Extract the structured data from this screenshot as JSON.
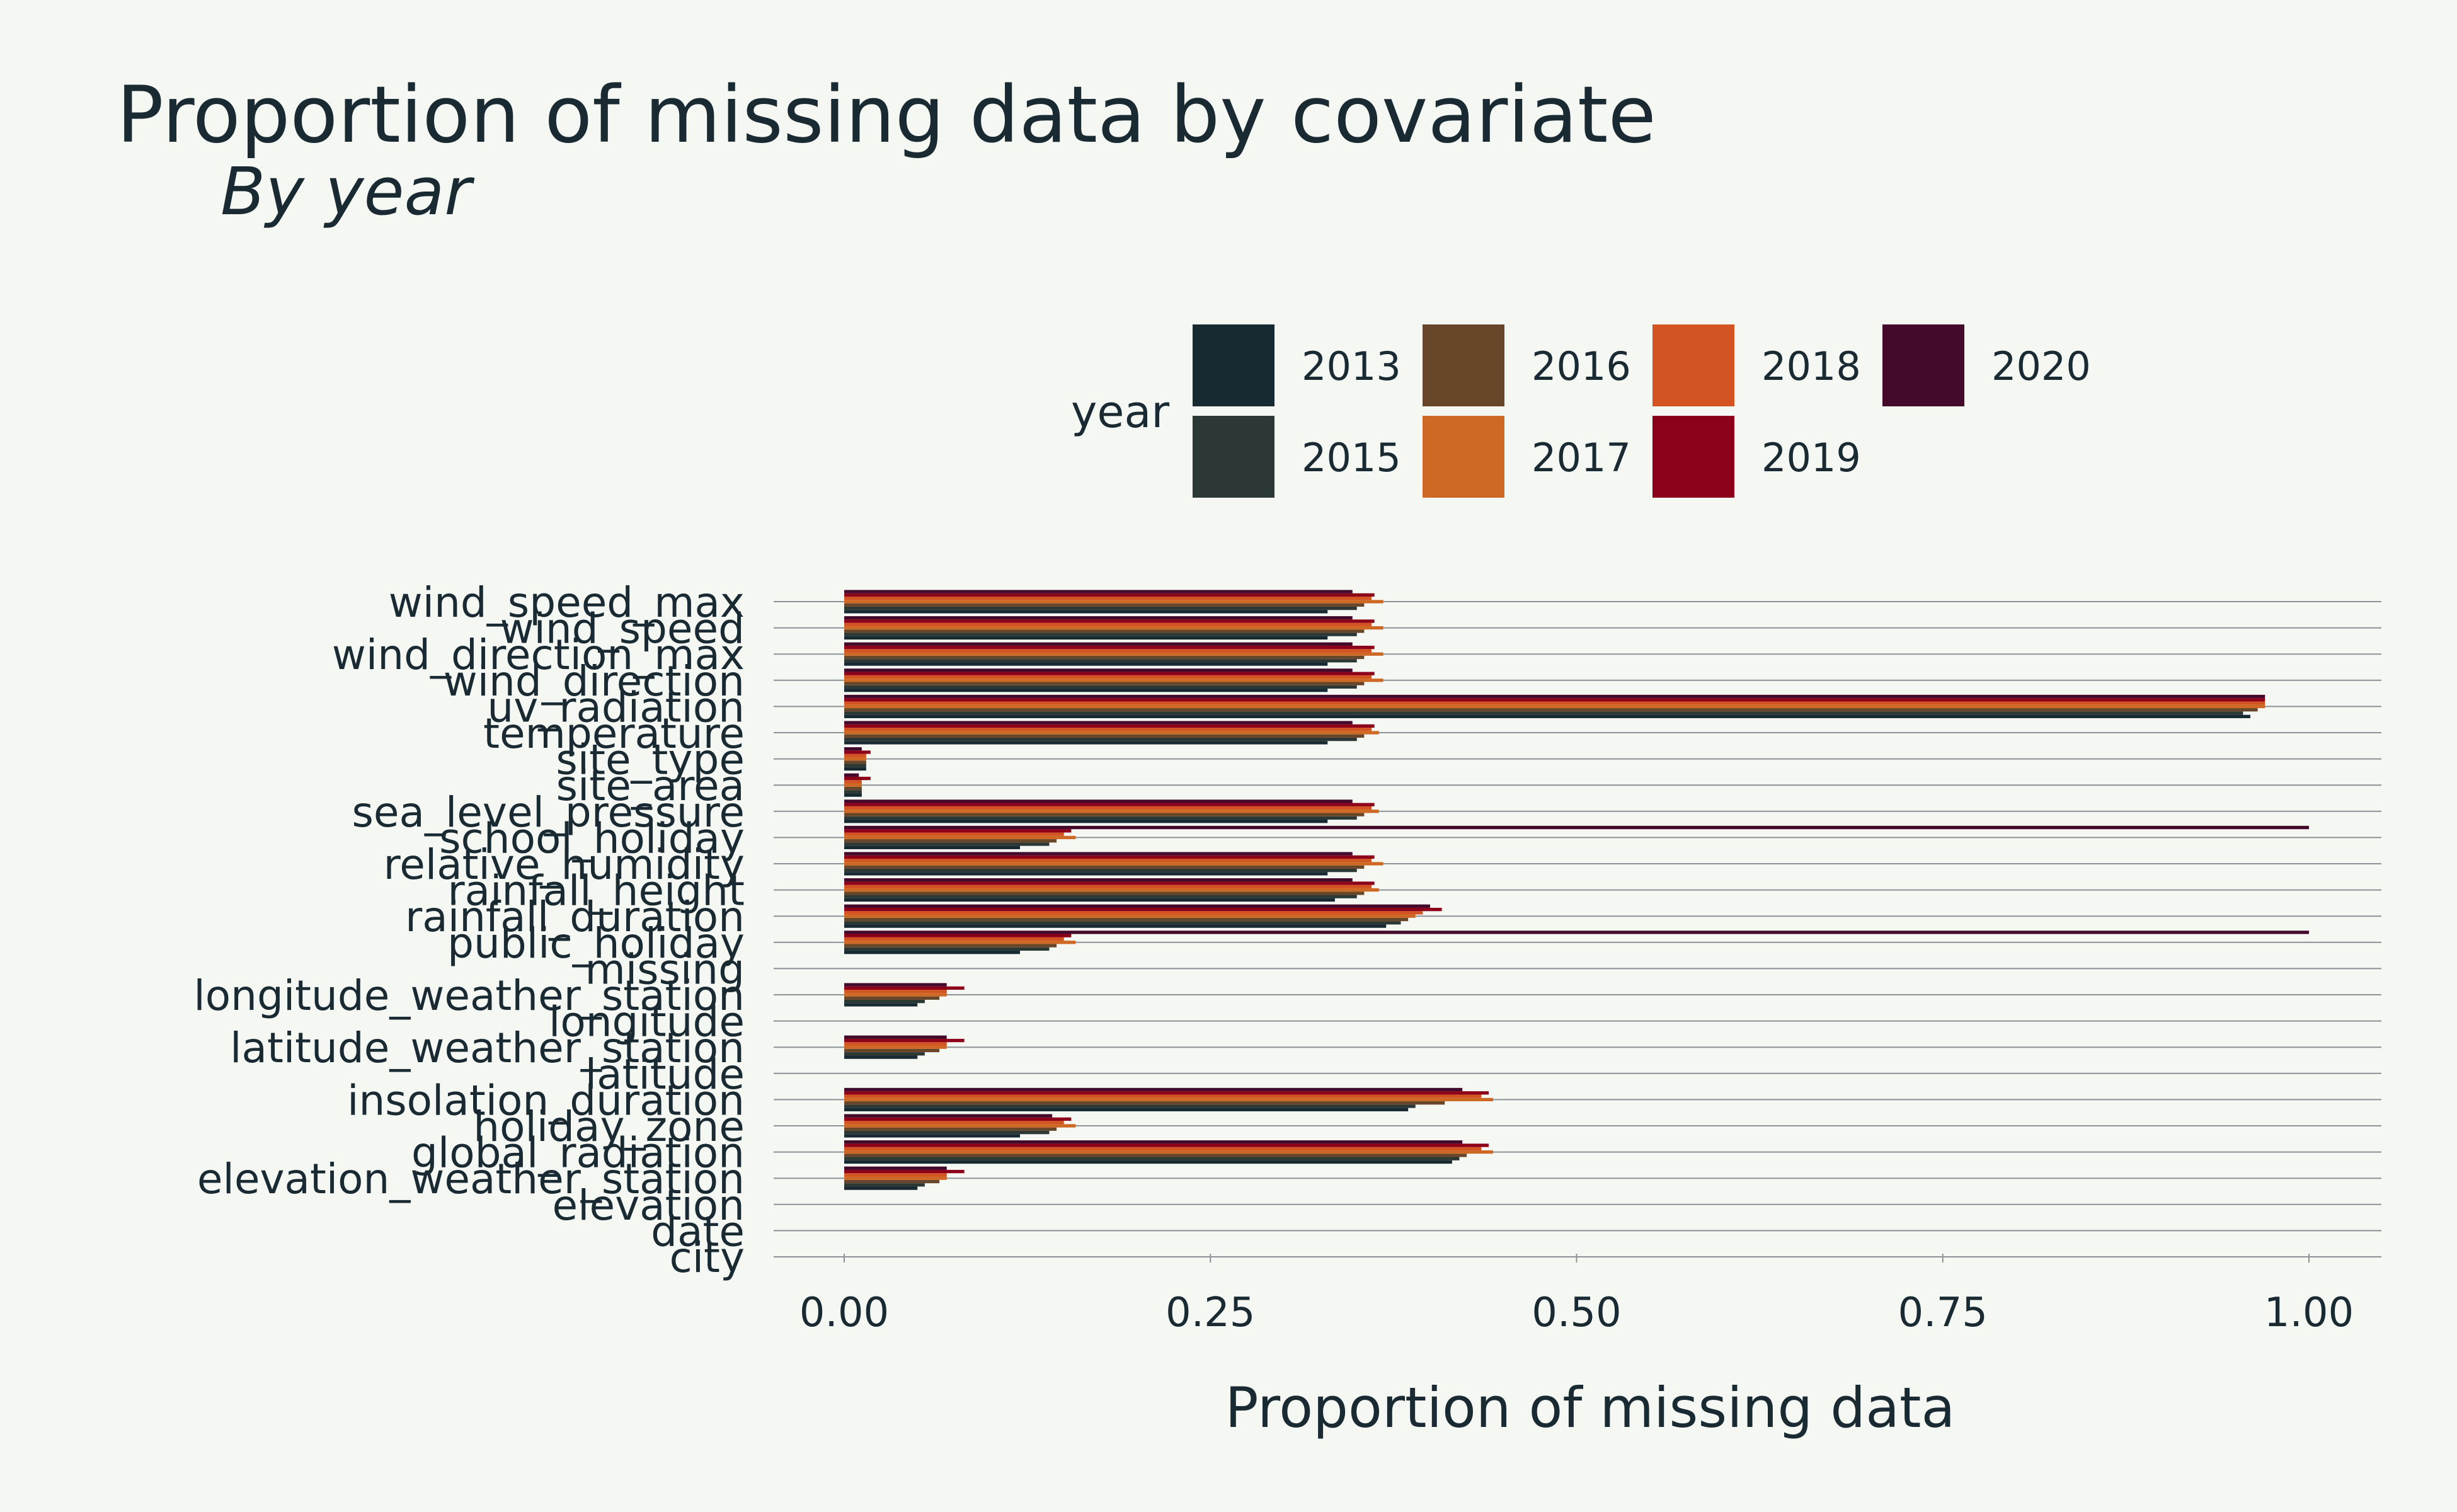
{
  "chart_data": {
    "type": "bar",
    "orientation": "horizontal",
    "title": "Proportion of missing data by covariate",
    "subtitle": "By year",
    "xlabel": "Proportion of missing data",
    "ylabel": "",
    "xlim": [
      -0.1,
      1.05
    ],
    "xticks": [
      0.0,
      0.25,
      0.5,
      0.75,
      1.0
    ],
    "xtick_labels": [
      "0.00",
      "0.25",
      "0.50",
      "0.75",
      "1.00"
    ],
    "grid": "horizontal lines at each category",
    "legend": {
      "title": "year",
      "placement": "top"
    },
    "categories": [
      "wind_speed_max",
      "wind_speed",
      "wind_direction_max",
      "wind_direction",
      "uv_radiation",
      "temperature",
      "site_type",
      "site_area",
      "sea_level_pressure",
      "school_holiday",
      "relative_humidity",
      "rainfall_height",
      "rainfall_duration",
      "public_holiday",
      "missing",
      "longitude_weather_station",
      "longitude",
      "latitude_weather_station",
      "latitude",
      "insolation_duration",
      "holiday_zone",
      "global_radiation",
      "elevation_weather_station",
      "elevation",
      "date",
      "city"
    ],
    "series": [
      {
        "name": "2013",
        "color": "#172a32",
        "values": [
          0.33,
          0.33,
          0.33,
          0.33,
          0.96,
          0.33,
          0.015,
          0.012,
          0.33,
          0.12,
          0.33,
          0.335,
          0.37,
          0.12,
          0,
          0.05,
          0,
          0.05,
          0,
          0.385,
          0.12,
          0.415,
          0.05,
          0,
          0,
          0
        ]
      },
      {
        "name": "2015",
        "color": "#2c3836",
        "values": [
          0.35,
          0.35,
          0.35,
          0.35,
          0.955,
          0.35,
          0.015,
          0.012,
          0.35,
          0.14,
          0.35,
          0.35,
          0.38,
          0.14,
          0,
          0.055,
          0,
          0.055,
          0,
          0.39,
          0.14,
          0.42,
          0.055,
          0,
          0,
          0
        ]
      },
      {
        "name": "2016",
        "color": "#684629",
        "values": [
          0.355,
          0.355,
          0.355,
          0.355,
          0.965,
          0.355,
          0.015,
          0.012,
          0.355,
          0.145,
          0.355,
          0.355,
          0.385,
          0.145,
          0,
          0.065,
          0,
          0.065,
          0,
          0.41,
          0.145,
          0.425,
          0.065,
          0,
          0,
          0
        ]
      },
      {
        "name": "2017",
        "color": "#cd6925",
        "values": [
          0.368,
          0.368,
          0.368,
          0.368,
          0.97,
          0.365,
          0.015,
          0.012,
          0.365,
          0.158,
          0.368,
          0.365,
          0.39,
          0.158,
          0,
          0.07,
          0,
          0.07,
          0,
          0.443,
          0.158,
          0.443,
          0.07,
          0,
          0,
          0
        ]
      },
      {
        "name": "2018",
        "color": "#d45322",
        "values": [
          0.36,
          0.36,
          0.36,
          0.36,
          0.97,
          0.36,
          0.015,
          0.012,
          0.36,
          0.15,
          0.36,
          0.36,
          0.395,
          0.15,
          0,
          0.07,
          0,
          0.07,
          0,
          0.435,
          0.15,
          0.435,
          0.07,
          0,
          0,
          0
        ]
      },
      {
        "name": "2019",
        "color": "#8c001a",
        "values": [
          0.362,
          0.362,
          0.362,
          0.362,
          0.97,
          0.362,
          0.018,
          0.018,
          0.362,
          0.155,
          0.362,
          0.362,
          0.408,
          0.155,
          0,
          0.082,
          0,
          0.082,
          0,
          0.44,
          0.155,
          0.44,
          0.082,
          0,
          0,
          0
        ]
      },
      {
        "name": "2020",
        "color": "#440a2c",
        "values": [
          0.347,
          0.347,
          0.347,
          0.347,
          0.97,
          0.347,
          0.012,
          0.01,
          0.347,
          1.0,
          0.347,
          0.347,
          0.4,
          1.0,
          0,
          0.07,
          0,
          0.07,
          0,
          0.422,
          0.142,
          0.422,
          0.07,
          0,
          0,
          0
        ]
      }
    ],
    "legend_order": [
      "2013",
      "2015",
      "2016",
      "2017",
      "2018",
      "2019",
      "2020"
    ]
  },
  "colors": {
    "background": "#f5f7f3",
    "text": "#1a2a33",
    "grid": "#8c9196"
  }
}
